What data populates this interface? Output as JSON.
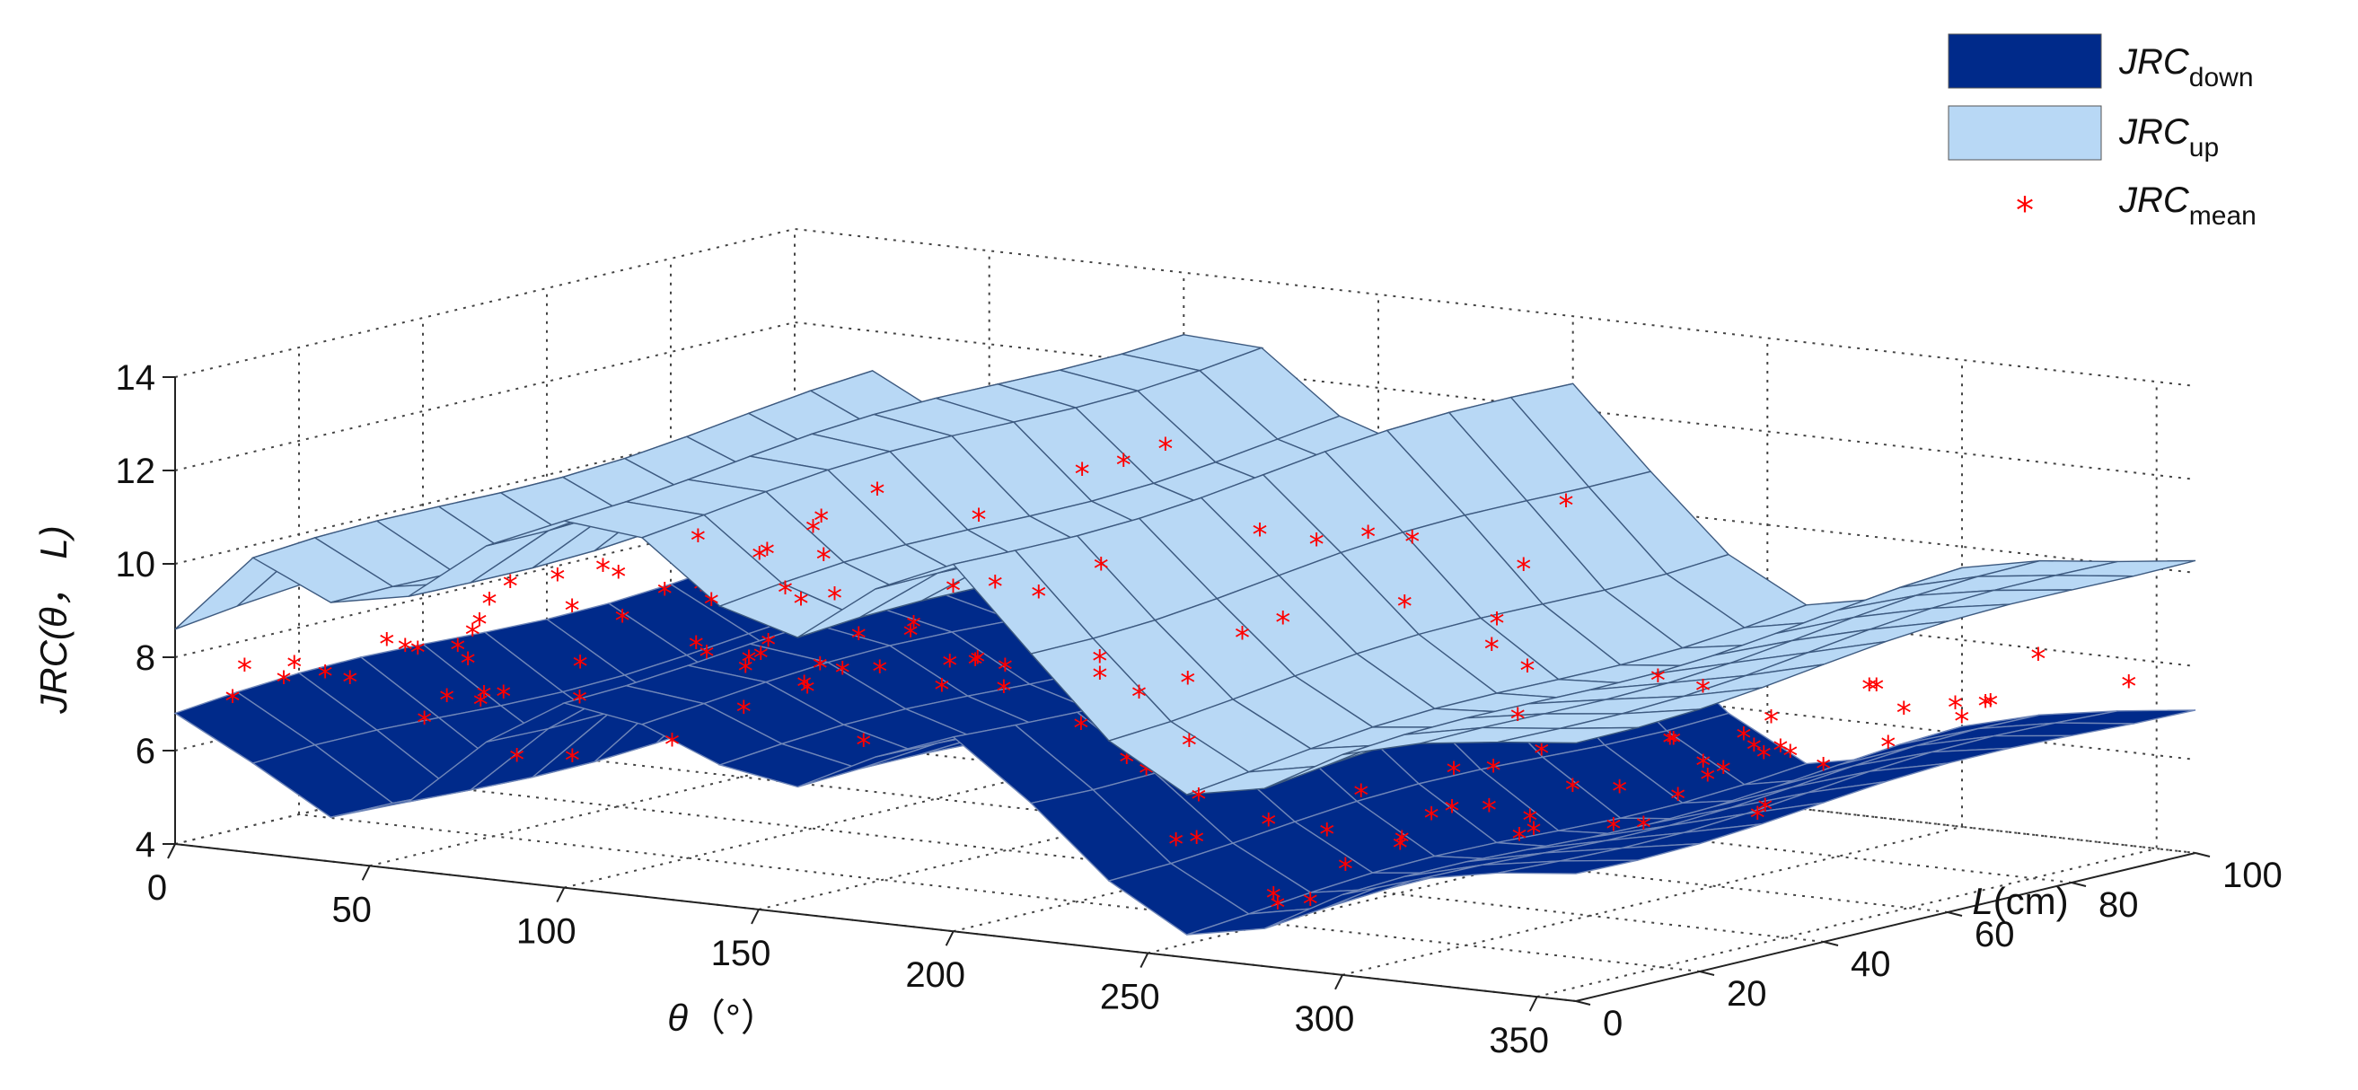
{
  "chart_data": {
    "type": "surface3d",
    "title": "",
    "axes": {
      "x": {
        "label_symbol": "θ",
        "label_unit": "（°）",
        "range": [
          0,
          360
        ],
        "ticks": [
          0,
          50,
          100,
          150,
          200,
          250,
          300,
          350
        ]
      },
      "y": {
        "label_symbol": "L",
        "label_unit": "(cm)",
        "range": [
          0,
          100
        ],
        "ticks": [
          0,
          20,
          40,
          60,
          80,
          100
        ]
      },
      "z": {
        "label_prefix": "JRC(",
        "label_theta": "θ",
        "label_sep": "， ",
        "label_L": "L",
        "label_suffix": ")",
        "range": [
          4,
          14
        ],
        "ticks": [
          4,
          6,
          8,
          10,
          12,
          14
        ]
      }
    },
    "grid": true,
    "legend": {
      "position": "top-right",
      "items": [
        {
          "main": "JRC",
          "sub": "down",
          "marker": "patch",
          "color": "#002a8a"
        },
        {
          "main": "JRC",
          "sub": "up",
          "marker": "patch",
          "color": "#b8d8f5"
        },
        {
          "main": "JRC",
          "sub": "mean",
          "marker": "star",
          "color": "#ff0000"
        }
      ]
    },
    "surfaces": [
      {
        "name": "JRC_down",
        "color": "#002a8a",
        "edge_color": "#6f86b8",
        "theta": [
          0,
          20,
          40,
          60,
          80,
          100,
          120,
          140,
          160,
          180,
          200,
          220,
          240,
          260,
          280,
          300,
          320,
          340,
          360
        ],
        "L": [
          0,
          10,
          20,
          30,
          40,
          50,
          60,
          70,
          80,
          90,
          100
        ],
        "profile": [
          7.0,
          6.0,
          5.0,
          5.6,
          7.2,
          8.3,
          8.0,
          7.2,
          6.8,
          7.6,
          8.3,
          7.2,
          5.8,
          4.8,
          5.0,
          5.8,
          6.3,
          6.7,
          7.0
        ],
        "L_slope": 0.004
      },
      {
        "name": "JRC_up",
        "color": "#b8d8f5",
        "edge_color": "#3d5a80",
        "theta": [
          0,
          20,
          40,
          60,
          80,
          100,
          120,
          140,
          160,
          180,
          200,
          220,
          240,
          260,
          280,
          300,
          320,
          340,
          360
        ],
        "L": [
          0,
          10,
          20,
          30,
          40,
          50,
          60,
          70,
          80,
          90,
          100
        ],
        "profile": [
          9.0,
          10.6,
          9.8,
          10.2,
          11.6,
          12.4,
          12.2,
          10.8,
          10.2,
          11.4,
          12.2,
          10.6,
          9.0,
          8.0,
          8.2,
          9.0,
          9.4,
          9.7,
          10.0
        ],
        "L_slope": 0.008
      }
    ],
    "mean_points": {
      "name": "JRC_mean",
      "color": "#ff0000",
      "marker": "*",
      "count": 180
    }
  }
}
